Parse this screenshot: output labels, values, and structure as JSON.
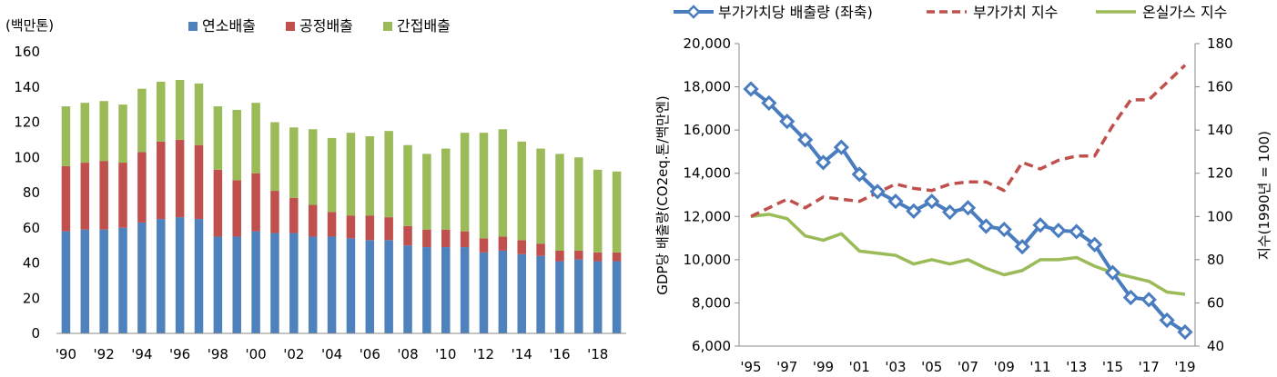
{
  "chart_data": [
    {
      "type": "bar",
      "stacked": true,
      "unit_label": "(백만톤)",
      "title": "",
      "xlabel": "",
      "ylabel": "",
      "ylim": [
        0,
        160
      ],
      "yticks": [
        0,
        20,
        40,
        60,
        80,
        100,
        120,
        140,
        160
      ],
      "grid": false,
      "legend_position": "top",
      "categories": [
        "'90",
        "'91",
        "'92",
        "'93",
        "'94",
        "'95",
        "'96",
        "'97",
        "'98",
        "'99",
        "'00",
        "'01",
        "'02",
        "'03",
        "'04",
        "'05",
        "'06",
        "'07",
        "'08",
        "'09",
        "'10",
        "'11",
        "'12",
        "'13",
        "'14",
        "'15",
        "'16",
        "'17",
        "'18",
        "'19"
      ],
      "xtick_labels": [
        "'90",
        "",
        "'92",
        "",
        "'94",
        "",
        "'96",
        "",
        "'98",
        "",
        "'00",
        "",
        "'02",
        "",
        "'04",
        "",
        "'06",
        "",
        "'08",
        "",
        "'10",
        "",
        "'12",
        "",
        "'14",
        "",
        "'16",
        "",
        "'18",
        ""
      ],
      "series": [
        {
          "name": "연소배출",
          "color": "#4f81bd",
          "values": [
            58,
            59,
            59,
            60,
            63,
            65,
            66,
            65,
            55,
            55,
            58,
            57,
            57,
            55,
            55,
            54,
            53,
            53,
            50,
            49,
            49,
            49,
            46,
            47,
            45,
            44,
            41,
            42,
            41,
            41
          ]
        },
        {
          "name": "공정배출",
          "color": "#c0504d",
          "values": [
            37,
            38,
            39,
            37,
            40,
            44,
            44,
            42,
            38,
            32,
            33,
            24,
            20,
            18,
            14,
            13,
            14,
            13,
            11,
            10,
            10,
            9,
            8,
            8,
            8,
            7,
            6,
            5,
            5,
            5
          ]
        },
        {
          "name": "간접배출",
          "color": "#9bbb59",
          "values": [
            34,
            34,
            34,
            33,
            36,
            34,
            34,
            35,
            36,
            40,
            40,
            39,
            40,
            43,
            42,
            47,
            45,
            49,
            46,
            43,
            46,
            56,
            60,
            61,
            56,
            54,
            55,
            53,
            47,
            46
          ]
        }
      ]
    },
    {
      "type": "line",
      "title": "",
      "xlabel": "",
      "ylabel": "GDP당 배출량(CO2eq.톤/백만엔)",
      "y2label": "지수(1990년 = 100)",
      "ylim": [
        6000,
        20000
      ],
      "yticks": [
        "6,000",
        "8,000",
        "10,000",
        "12,000",
        "14,000",
        "16,000",
        "18,000",
        "20,000"
      ],
      "y2lim": [
        40,
        180
      ],
      "y2ticks": [
        40,
        60,
        80,
        100,
        120,
        140,
        160,
        180
      ],
      "grid": false,
      "legend_position": "top",
      "x": [
        "'95",
        "'96",
        "'97",
        "'98",
        "'99",
        "'00",
        "'01",
        "'02",
        "'03",
        "'04",
        "'05",
        "'06",
        "'07",
        "'08",
        "'09",
        "'10",
        "'11",
        "'12",
        "'13",
        "'14",
        "'15",
        "'16",
        "'17",
        "'18",
        "'19"
      ],
      "xtick_labels": [
        "'95",
        "",
        "'97",
        "",
        "'99",
        "",
        "'01",
        "",
        "'03",
        "",
        "'05",
        "",
        "'07",
        "",
        "'09",
        "",
        "'11",
        "",
        "'13",
        "",
        "'15",
        "",
        "'17",
        "",
        "'19"
      ],
      "series": [
        {
          "name": "부가가치당 배출량 (좌축)",
          "axis": "left",
          "color": "#4a7dc0",
          "marker": "diamond",
          "values": [
            17900,
            17250,
            16400,
            15550,
            14500,
            15200,
            13950,
            13150,
            12700,
            12250,
            12700,
            12200,
            12400,
            11550,
            11400,
            10600,
            11600,
            11350,
            11300,
            10700,
            9400,
            8250,
            8150,
            7200,
            6650
          ]
        },
        {
          "name": "부가가치 지수",
          "axis": "right",
          "color": "#c0504d",
          "dash": true,
          "values": [
            100,
            104,
            108,
            104,
            109,
            108,
            107,
            111,
            115,
            113,
            112,
            115,
            116,
            116,
            112,
            125,
            122,
            126,
            128,
            128,
            142,
            154,
            154,
            162,
            170
          ]
        },
        {
          "name": "온실가스 지수",
          "axis": "right",
          "color": "#9bbb59",
          "values": [
            100,
            101,
            99,
            91,
            89,
            92,
            84,
            83,
            82,
            78,
            80,
            78,
            80,
            76,
            73,
            75,
            80,
            80,
            81,
            77,
            74,
            72,
            70,
            65,
            64
          ]
        }
      ]
    }
  ]
}
